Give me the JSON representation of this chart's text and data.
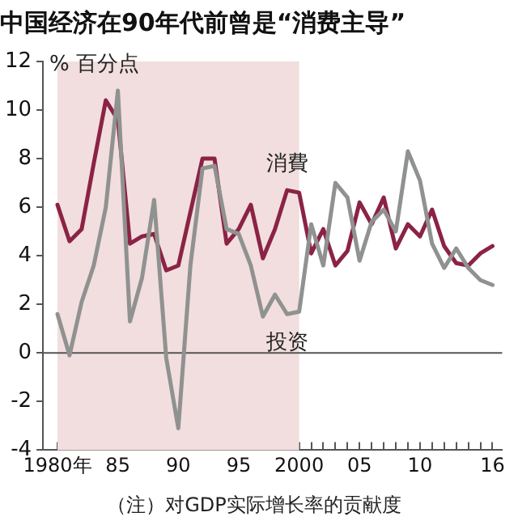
{
  "chart_data": {
    "type": "line",
    "title": "中国经济在90年代前曾是“消费主导”",
    "ylabel": "% 百分点",
    "x": [
      1980,
      1981,
      1982,
      1983,
      1984,
      1985,
      1986,
      1987,
      1988,
      1989,
      1990,
      1991,
      1992,
      1993,
      1994,
      1995,
      1996,
      1997,
      1998,
      1999,
      2000,
      2001,
      2002,
      2003,
      2004,
      2005,
      2006,
      2007,
      2008,
      2009,
      2010,
      2011,
      2012,
      2013,
      2014,
      2015,
      2016
    ],
    "series": [
      {
        "name": "消費",
        "color": "#8b2346",
        "values": [
          6.1,
          4.6,
          5.1,
          7.8,
          10.4,
          9.6,
          4.5,
          4.8,
          4.9,
          3.4,
          3.6,
          5.8,
          8.0,
          8.0,
          4.5,
          5.1,
          6.1,
          3.9,
          5.1,
          6.7,
          6.6,
          4.1,
          5.1,
          3.6,
          4.2,
          6.2,
          5.3,
          6.4,
          4.3,
          5.3,
          4.8,
          5.9,
          4.4,
          3.7,
          3.6,
          4.1,
          4.4
        ]
      },
      {
        "name": "投资",
        "color": "#8f9290",
        "values": [
          1.6,
          -0.1,
          2.1,
          3.6,
          6.0,
          10.8,
          1.3,
          3.1,
          6.3,
          -0.2,
          -3.1,
          3.6,
          7.6,
          7.7,
          5.1,
          4.9,
          3.6,
          1.5,
          2.4,
          1.6,
          1.7,
          5.3,
          3.6,
          7.0,
          6.4,
          3.8,
          5.4,
          5.9,
          5.0,
          8.3,
          7.1,
          4.5,
          3.5,
          4.3,
          3.5,
          3.0,
          2.8
        ]
      }
    ],
    "xlim": [
      1978.8,
      2016.8
    ],
    "xticks": [
      {
        "value": 1980,
        "label": "1980年"
      },
      {
        "value": 1981,
        "label": null
      },
      {
        "value": 1982,
        "label": null
      },
      {
        "value": 1983,
        "label": null
      },
      {
        "value": 1984,
        "label": null
      },
      {
        "value": 1985,
        "label": "85"
      },
      {
        "value": 1986,
        "label": null
      },
      {
        "value": 1987,
        "label": null
      },
      {
        "value": 1988,
        "label": null
      },
      {
        "value": 1989,
        "label": null
      },
      {
        "value": 1990,
        "label": "90"
      },
      {
        "value": 1991,
        "label": null
      },
      {
        "value": 1992,
        "label": null
      },
      {
        "value": 1993,
        "label": null
      },
      {
        "value": 1994,
        "label": null
      },
      {
        "value": 1995,
        "label": "95"
      },
      {
        "value": 1996,
        "label": null
      },
      {
        "value": 1997,
        "label": null
      },
      {
        "value": 1998,
        "label": null
      },
      {
        "value": 1999,
        "label": null
      },
      {
        "value": 2000,
        "label": "2000"
      },
      {
        "value": 2001,
        "label": null
      },
      {
        "value": 2002,
        "label": null
      },
      {
        "value": 2003,
        "label": null
      },
      {
        "value": 2004,
        "label": null
      },
      {
        "value": 2005,
        "label": "05"
      },
      {
        "value": 2006,
        "label": null
      },
      {
        "value": 2007,
        "label": null
      },
      {
        "value": 2008,
        "label": null
      },
      {
        "value": 2009,
        "label": null
      },
      {
        "value": 2010,
        "label": "10"
      },
      {
        "value": 2011,
        "label": null
      },
      {
        "value": 2012,
        "label": null
      },
      {
        "value": 2013,
        "label": null
      },
      {
        "value": 2014,
        "label": null
      },
      {
        "value": 2015,
        "label": null
      },
      {
        "value": 2016,
        "label": "16"
      }
    ],
    "ylim": [
      -4,
      12
    ],
    "yticks": [
      -4,
      -2,
      0,
      2,
      4,
      6,
      8,
      10,
      12
    ],
    "ref_lines": [
      {
        "axis": "y",
        "value": 0,
        "color": "#555555"
      }
    ],
    "bands": [
      {
        "axis": "x",
        "from": 1980,
        "to": 2000,
        "color": "#f2dede"
      }
    ],
    "grid": false,
    "legend": false,
    "marker": "none",
    "line_style": "solid",
    "annotations": [
      "（注）对GDP实际增长率的贡献度"
    ]
  }
}
